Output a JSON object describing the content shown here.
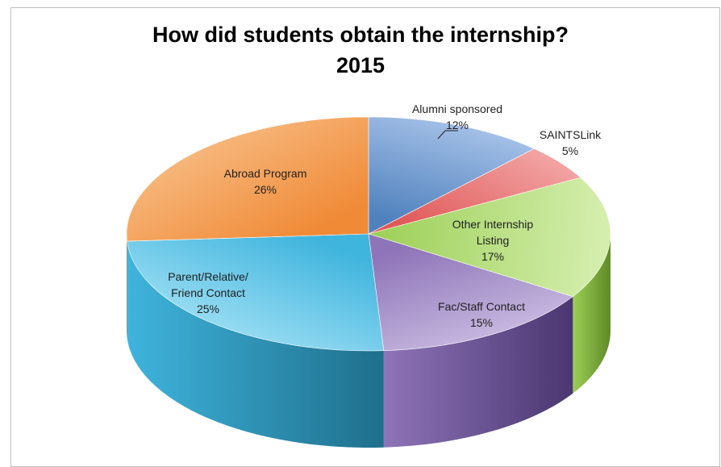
{
  "chart_data": {
    "type": "pie",
    "title_lines": [
      "How did students obtain the internship?",
      "2015"
    ],
    "slices": [
      {
        "label": "Alumni sponsored",
        "value": 12,
        "pct_label": "12%",
        "color": "#4f81bd",
        "color_light": "#a9c4ea",
        "color_dark": "#2f5784"
      },
      {
        "label": "SAINTSLink",
        "value": 5,
        "pct_label": "5%",
        "color": "#e05a5a",
        "color_light": "#f2a2a2",
        "color_dark": "#9e2f2f"
      },
      {
        "label": "Other Internship Listing",
        "value": 17,
        "pct_label": "17%",
        "color": "#9bcf55",
        "color_light": "#d6efb0",
        "color_dark": "#5f8a27"
      },
      {
        "label": "Fac/Staff Contact",
        "value": 15,
        "pct_label": "15%",
        "color": "#8e74b8",
        "color_light": "#cdbfe4",
        "color_dark": "#4a3670"
      },
      {
        "label": "Parent/Relative/ Friend Contact",
        "value": 25,
        "pct_label": "25%",
        "color": "#3fb4dd",
        "color_light": "#a9e4f7",
        "color_dark": "#1e6f8c"
      },
      {
        "label": "Abroad Program",
        "value": 26,
        "pct_label": "26%",
        "color": "#f08a36",
        "color_light": "#f8c08a",
        "color_dark": "#a85516"
      }
    ]
  }
}
